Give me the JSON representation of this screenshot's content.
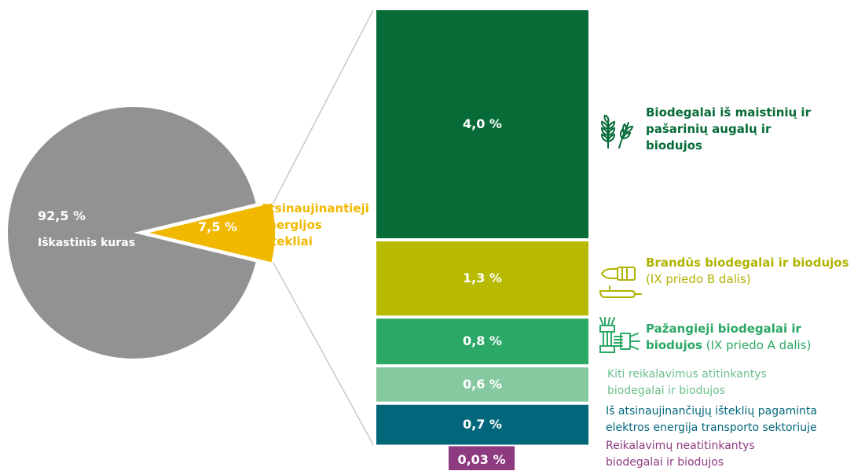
{
  "chart_data": {
    "type": "pie",
    "pie": {
      "slices": [
        {
          "value": 92.5,
          "value_label": "92,5 %",
          "label": "Iškastinis kuras",
          "color": "#929292"
        },
        {
          "value": 7.5,
          "value_label": "7,5 %",
          "label": "Atsinaujinantieji energijos ištekliai",
          "color": "#f1b800"
        }
      ]
    },
    "breakdown": {
      "type": "bar",
      "stacked": true,
      "segments": [
        {
          "value": 4.0,
          "value_label": "4,0 %",
          "label_bold": "Biodegalai iš maistinių ir pašarinių augalų ir biodujos",
          "label_extra": "",
          "color": "#076b38",
          "label_color": "#076b38",
          "icon": "wheat-icon"
        },
        {
          "value": 1.3,
          "value_label": "1,3 %",
          "label_bold": "Brandūs biodegalai ir biodujos",
          "label_extra": "(IX priedo B dalis)",
          "color": "#b7ba00",
          "label_color": "#b0b300",
          "icon": "oil-pump-icon"
        },
        {
          "value": 0.8,
          "value_label": "0,8 %",
          "label_bold": "Pažangieji biodegalai ir biodujos",
          "label_extra": "(IX priedo A dalis)",
          "color": "#2ba766",
          "label_color": "#2ba766",
          "icon": "biomass-icon"
        },
        {
          "value": 0.6,
          "value_label": "0,6 %",
          "label_bold": "",
          "label_extra": "Kiti reikalavimus atitinkantys biodegalai ir biodujos",
          "color": "#86c9a0",
          "label_color": "#6cbf8c",
          "icon": ""
        },
        {
          "value": 0.7,
          "value_label": "0,7 %",
          "label_bold": "",
          "label_extra": "Iš atsinaujinančiųjų išteklių pagaminta elektros energija transporto sektoriuje",
          "color": "#03677c",
          "label_color": "#03677c",
          "icon": ""
        },
        {
          "value": 0.03,
          "value_label": "0,03 %",
          "label_bold": "",
          "label_extra": "Reikalavimų neatitinkantys biodegalai ir biodujos",
          "color": "#8e3a80",
          "label_color": "#8e3a80",
          "icon": ""
        }
      ]
    }
  }
}
